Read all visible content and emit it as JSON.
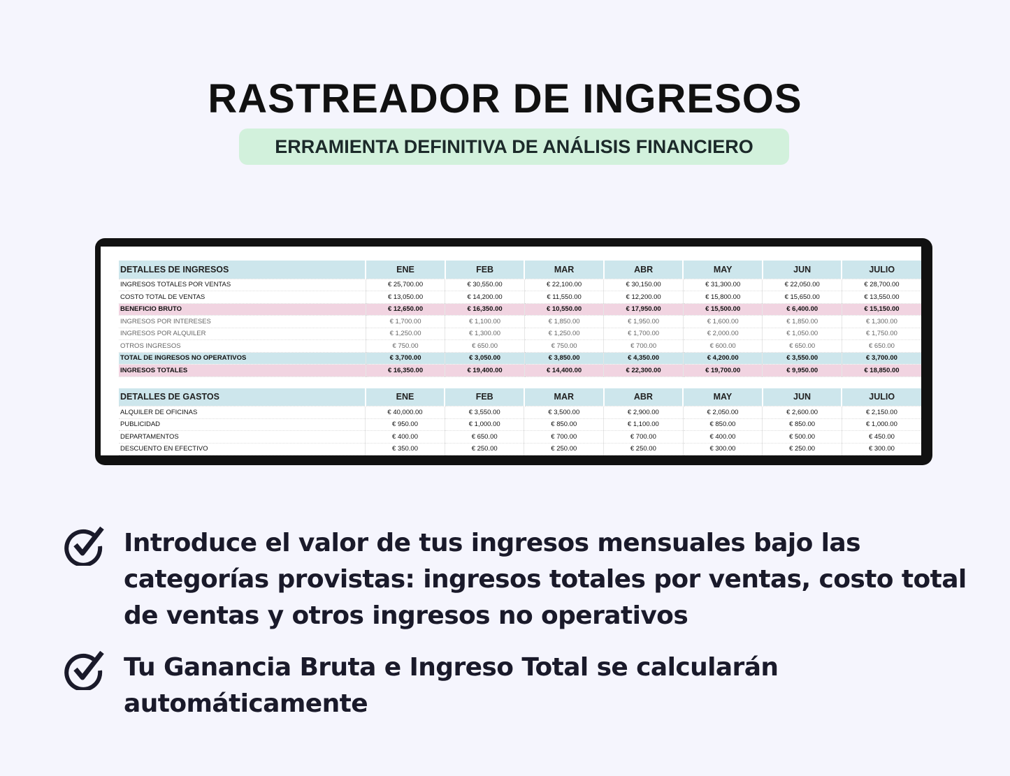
{
  "title": "RASTREADOR DE INGRESOS",
  "subtitle": "ERRAMIENTA DEFINITIVA DE ANÁLISIS FINANCIERO",
  "colors": {
    "background": "#f5f5fd",
    "subtitle_bg": "#d2f1dc",
    "header_bg": "#cde6ec",
    "highlight_pink": "#f1d4e1"
  },
  "income": {
    "header": "DETALLES DE INGRESOS",
    "months": [
      "ENE",
      "FEB",
      "MAR",
      "ABR",
      "MAY",
      "JUN",
      "JULIO"
    ],
    "rows": [
      {
        "label": "INGRESOS TOTALES POR VENTAS",
        "style": "",
        "values": [
          "€ 25,700.00",
          "€ 30,550.00",
          "€ 22,100.00",
          "€ 30,150.00",
          "€ 31,300.00",
          "€ 22,050.00",
          "€ 28,700.00"
        ]
      },
      {
        "label": "COSTO TOTAL DE VENTAS",
        "style": "",
        "values": [
          "€ 13,050.00",
          "€ 14,200.00",
          "€ 11,550.00",
          "€ 12,200.00",
          "€ 15,800.00",
          "€ 15,650.00",
          "€ 13,550.00"
        ]
      },
      {
        "label": "BENEFICIO BRUTO",
        "style": "pink",
        "values": [
          "€ 12,650.00",
          "€ 16,350.00",
          "€ 10,550.00",
          "€ 17,950.00",
          "€ 15,500.00",
          "€ 6,400.00",
          "€ 15,150.00"
        ]
      },
      {
        "label": "INGRESOS POR INTERESES",
        "style": "light",
        "values": [
          "€ 1,700.00",
          "€ 1,100.00",
          "€ 1,850.00",
          "€ 1,950.00",
          "€ 1,600.00",
          "€ 1,850.00",
          "€ 1,300.00"
        ]
      },
      {
        "label": "INGRESOS POR ALQUILER",
        "style": "light",
        "values": [
          "€ 1,250.00",
          "€ 1,300.00",
          "€ 1,250.00",
          "€ 1,700.00",
          "€ 2,000.00",
          "€ 1,050.00",
          "€ 1,750.00"
        ]
      },
      {
        "label": "OTROS INGRESOS",
        "style": "light",
        "values": [
          "€ 750.00",
          "€ 650.00",
          "€ 750.00",
          "€ 700.00",
          "€ 600.00",
          "€ 650.00",
          "€ 650.00"
        ]
      },
      {
        "label": "TOTAL DE INGRESOS NO OPERATIVOS",
        "style": "blue",
        "values": [
          "€ 3,700.00",
          "€ 3,050.00",
          "€ 3,850.00",
          "€ 4,350.00",
          "€ 4,200.00",
          "€ 3,550.00",
          "€ 3,700.00"
        ]
      },
      {
        "label": "INGRESOS TOTALES",
        "style": "pink",
        "values": [
          "€ 16,350.00",
          "€ 19,400.00",
          "€ 14,400.00",
          "€ 22,300.00",
          "€ 19,700.00",
          "€ 9,950.00",
          "€ 18,850.00"
        ]
      }
    ]
  },
  "expenses": {
    "header": "DETALLES DE GASTOS",
    "months": [
      "ENE",
      "FEB",
      "MAR",
      "ABR",
      "MAY",
      "JUN",
      "JULIO"
    ],
    "rows": [
      {
        "label": "ALQUILER DE OFICINAS",
        "style": "",
        "values": [
          "€ 40,000.00",
          "€ 3,550.00",
          "€ 3,500.00",
          "€ 2,900.00",
          "€ 2,050.00",
          "€ 2,600.00",
          "€ 2,150.00"
        ]
      },
      {
        "label": "PUBLICIDAD",
        "style": "",
        "values": [
          "€ 950.00",
          "€ 1,000.00",
          "€ 850.00",
          "€ 1,100.00",
          "€ 850.00",
          "€ 850.00",
          "€ 1,000.00"
        ]
      },
      {
        "label": "DEPARTAMENTOS",
        "style": "",
        "values": [
          "€ 400.00",
          "€ 650.00",
          "€ 700.00",
          "€ 700.00",
          "€ 400.00",
          "€ 500.00",
          "€ 450.00"
        ]
      },
      {
        "label": "DESCUENTO EN EFECTIVO",
        "style": "",
        "values": [
          "€ 350.00",
          "€ 250.00",
          "€ 250.00",
          "€ 250.00",
          "€ 300.00",
          "€ 250.00",
          "€ 300.00"
        ]
      }
    ]
  },
  "features": [
    {
      "icon": "check-circle-icon",
      "text": "Introduce el valor de tus ingresos mensuales bajo las categorías provistas: ingresos totales por ventas, costo total de ventas y otros ingresos no operativos"
    },
    {
      "icon": "check-circle-icon",
      "text": "Tu Ganancia Bruta e Ingreso Total se calcularán automáticamente"
    }
  ]
}
